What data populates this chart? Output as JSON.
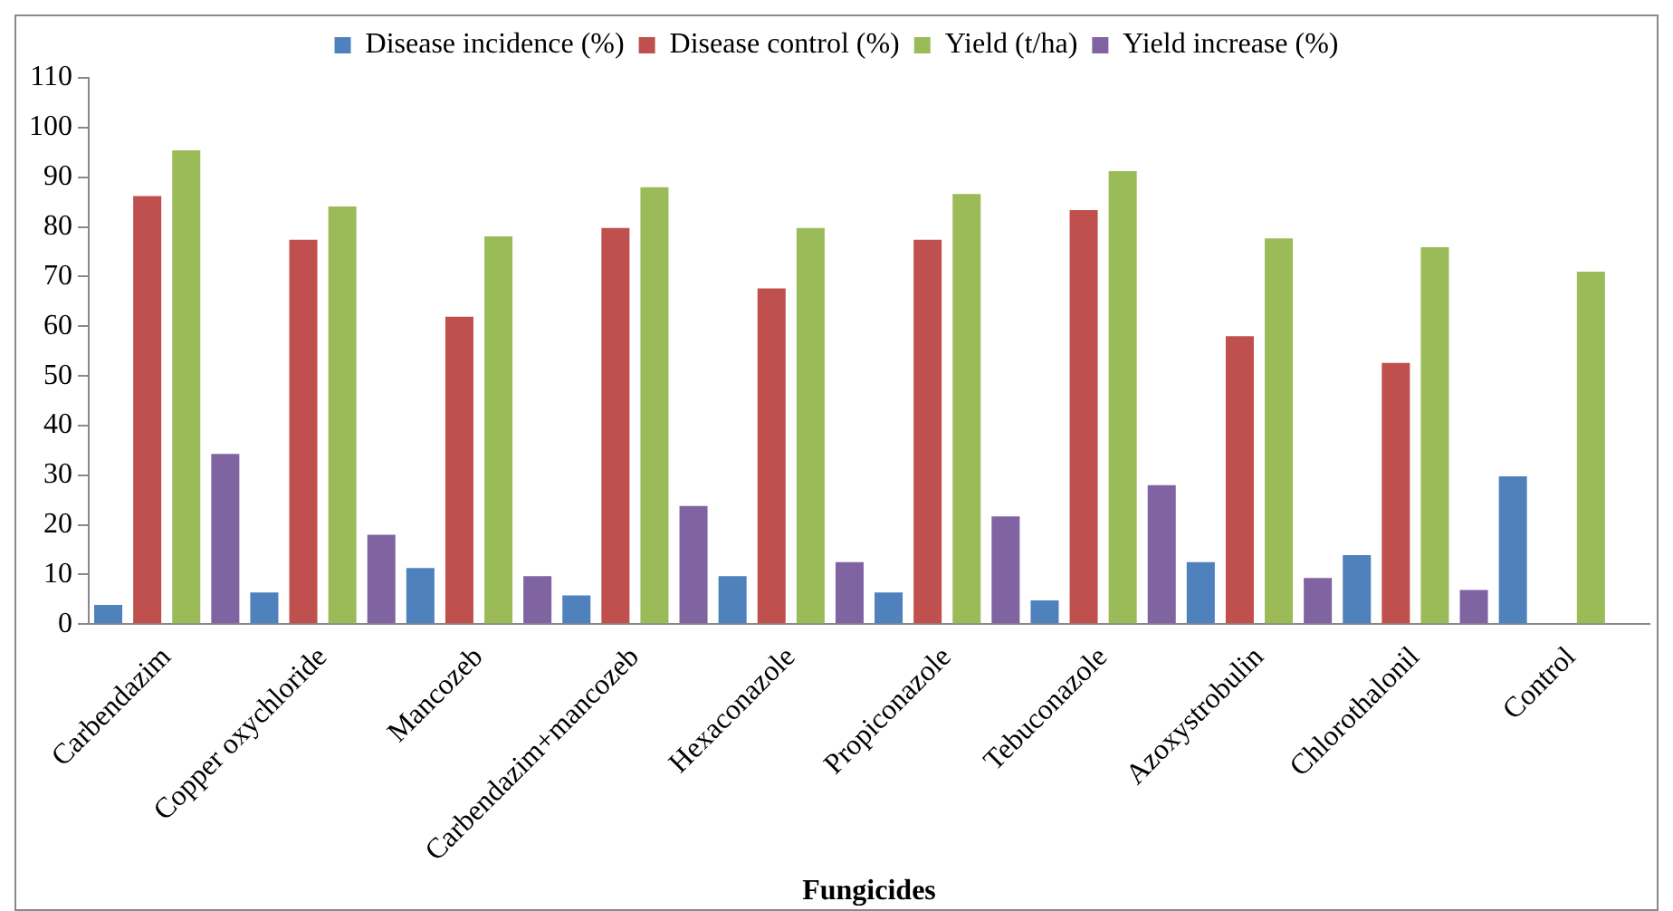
{
  "chart_data": {
    "type": "bar",
    "xlabel": "Fungicides",
    "categories": [
      "Carbendazim",
      "Copper oxychloride",
      "Mancozeb",
      "Carbendazim+mancozeb",
      "Hexaconazole",
      "Propiconazole",
      "Tebuconazole",
      "Azoxystrobulin",
      "Chlorothalonil",
      "Control"
    ],
    "series": [
      {
        "name": "Disease incidence (%)",
        "color": "#4f81bd",
        "values": [
          3.9,
          6.4,
          11.3,
          5.8,
          9.7,
          6.4,
          4.8,
          12.5,
          13.9,
          29.8
        ]
      },
      {
        "name": "Disease control (%)",
        "color": "#c0504d",
        "values": [
          86.2,
          77.4,
          61.9,
          79.8,
          67.6,
          77.4,
          83.4,
          58.0,
          52.6,
          null
        ]
      },
      {
        "name": "Yield (t/ha)",
        "color": "#9bbb59",
        "values": [
          95.4,
          84.1,
          78.1,
          88.0,
          79.8,
          86.6,
          91.2,
          77.7,
          75.9,
          71.0
        ]
      },
      {
        "name": "Yield increase (%)",
        "color": "#8064a2",
        "values": [
          34.3,
          18.0,
          9.7,
          23.8,
          12.5,
          21.7,
          28.0,
          9.3,
          6.9,
          null
        ]
      }
    ],
    "ylim": [
      0,
      110
    ],
    "yticks": [
      0,
      10,
      20,
      30,
      40,
      50,
      60,
      70,
      80,
      90,
      100,
      110
    ],
    "grid": false,
    "legend": "top"
  }
}
